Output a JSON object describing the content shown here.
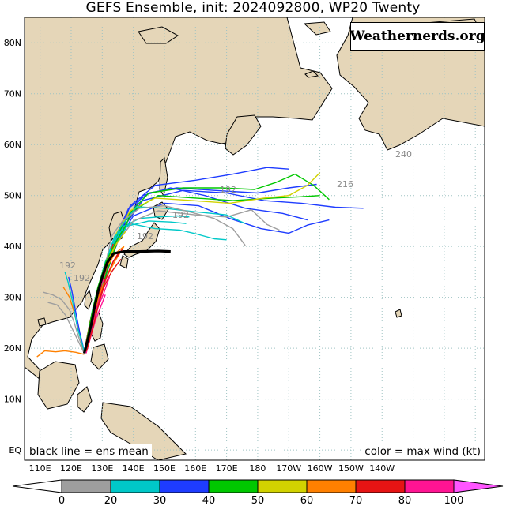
{
  "title": "GEFS Ensemble, init: 2024092800, WP20 Twenty",
  "brand": "Weathernerds.org",
  "footer": {
    "left": "black line = ens mean",
    "right": "color = max wind (kt)"
  },
  "colors": {
    "land": "#e5d6b8",
    "ocean": "#ffffff",
    "grid": "#9fc3c3",
    "ens_mean": "#000000"
  },
  "map": {
    "lon_range": [
      105,
      253
    ],
    "lat_range": [
      -2,
      85
    ],
    "lat_labels": [
      "EQ",
      "10N",
      "20N",
      "30N",
      "40N",
      "50N",
      "60N",
      "70N",
      "80N"
    ],
    "lon_labels": [
      "110E",
      "120E",
      "130E",
      "140E",
      "150E",
      "160E",
      "170E",
      "180",
      "170W",
      "160W",
      "150W",
      "140W"
    ],
    "track_hour_labels": [
      "192",
      "192",
      "192",
      "240",
      "216",
      "192",
      "192"
    ],
    "ens_mean_track": [
      [
        124.2,
        19.0
      ],
      [
        125.5,
        22.0
      ],
      [
        126.6,
        25.0
      ],
      [
        127.5,
        28.0
      ],
      [
        128.6,
        31.0
      ],
      [
        130.0,
        34.0
      ],
      [
        131.6,
        36.8
      ],
      [
        133.6,
        38.6
      ],
      [
        137.0,
        39.0
      ],
      [
        142.0,
        39.0
      ],
      [
        148.0,
        39.1
      ],
      [
        152.0,
        39.0
      ]
    ],
    "members": [
      {
        "color": "#1e3cff",
        "path": [
          [
            125.0,
            19.5
          ],
          [
            127.5,
            25
          ],
          [
            129.5,
            31
          ],
          [
            132,
            36
          ],
          [
            134.5,
            42
          ],
          [
            138.5,
            47.5
          ],
          [
            145,
            50.5
          ],
          [
            154,
            51.5
          ],
          [
            166,
            51.0
          ],
          [
            180,
            50.5
          ],
          [
            190,
            51.5
          ],
          [
            199,
            52.2
          ]
        ]
      },
      {
        "color": "#1e3cff",
        "path": [
          [
            124.5,
            19.8
          ],
          [
            127,
            26
          ],
          [
            130,
            33
          ],
          [
            133.5,
            39
          ],
          [
            137.5,
            45
          ],
          [
            143,
            50
          ],
          [
            152,
            51.5
          ],
          [
            163,
            50.0
          ],
          [
            176,
            47.5
          ],
          [
            188,
            46.5
          ],
          [
            196,
            45.2
          ]
        ]
      },
      {
        "color": "#1e3cff",
        "path": [
          [
            125.2,
            20.0
          ],
          [
            128,
            27
          ],
          [
            131,
            34
          ],
          [
            134.5,
            41
          ],
          [
            139,
            48
          ],
          [
            147,
            52
          ],
          [
            160,
            53
          ],
          [
            172,
            54.2
          ],
          [
            183,
            55.5
          ],
          [
            190,
            55.2
          ]
        ]
      },
      {
        "color": "#1e3cff",
        "path": [
          [
            125,
            19.5
          ],
          [
            128,
            27
          ],
          [
            131,
            34
          ],
          [
            135,
            41
          ],
          [
            140,
            46
          ],
          [
            150,
            48.5
          ],
          [
            161,
            48
          ],
          [
            171,
            45.5
          ],
          [
            181,
            43.5
          ],
          [
            190,
            42.6
          ],
          [
            196,
            44.2
          ],
          [
            203,
            45.2
          ]
        ]
      },
      {
        "color": "#1e3cff",
        "path": [
          [
            124.8,
            20.5
          ],
          [
            127.5,
            28
          ],
          [
            131,
            36
          ],
          [
            136,
            43
          ],
          [
            143,
            49
          ],
          [
            156,
            51
          ],
          [
            170,
            50.5
          ],
          [
            182,
            49
          ],
          [
            194,
            48.5
          ],
          [
            205,
            47.7
          ],
          [
            214,
            47.5
          ]
        ]
      },
      {
        "color": "#00c800",
        "path": [
          [
            124.5,
            19.5
          ],
          [
            127.5,
            27
          ],
          [
            131,
            34
          ],
          [
            134,
            41
          ],
          [
            138,
            46
          ],
          [
            145,
            50.5
          ],
          [
            156,
            51.5
          ],
          [
            168,
            51.5
          ],
          [
            179,
            51.2
          ],
          [
            186,
            52.6
          ],
          [
            192,
            54.2
          ],
          [
            198,
            52.0
          ],
          [
            203,
            49.2
          ]
        ]
      },
      {
        "color": "#00c800",
        "path": [
          [
            125.0,
            19.8
          ],
          [
            128,
            27
          ],
          [
            131.5,
            35
          ],
          [
            135.5,
            42
          ],
          [
            140,
            47
          ],
          [
            148,
            50
          ],
          [
            160,
            49.5
          ],
          [
            172,
            49.0
          ],
          [
            185,
            49.5
          ],
          [
            195,
            49.8
          ],
          [
            200,
            50.0
          ]
        ]
      },
      {
        "color": "#d2d200",
        "path": [
          [
            125.0,
            20.0
          ],
          [
            128,
            28
          ],
          [
            131,
            35
          ],
          [
            134,
            42
          ],
          [
            139,
            47
          ],
          [
            147,
            49.5
          ],
          [
            159,
            49.0
          ],
          [
            171,
            48.5
          ],
          [
            182,
            49.5
          ],
          [
            190,
            50.0
          ],
          [
            196,
            52.0
          ],
          [
            200,
            54.5
          ]
        ]
      },
      {
        "color": "#00c8c8",
        "path": [
          [
            124.3,
            19.8
          ],
          [
            127,
            27
          ],
          [
            130,
            34
          ],
          [
            133,
            40
          ],
          [
            137,
            44
          ],
          [
            142,
            45.5
          ],
          [
            148,
            45.8
          ],
          [
            154,
            46.0
          ],
          [
            158,
            45.8
          ]
        ]
      },
      {
        "color": "#00c8c8",
        "path": [
          [
            124.6,
            20.0
          ],
          [
            127.5,
            27
          ],
          [
            130.5,
            34
          ],
          [
            133.5,
            40
          ],
          [
            138,
            44
          ],
          [
            145,
            45
          ],
          [
            152,
            44.8
          ],
          [
            157,
            44.5
          ]
        ]
      },
      {
        "color": "#00c8c8",
        "path": [
          [
            124.5,
            20.2
          ],
          [
            127,
            28
          ],
          [
            130.5,
            36
          ],
          [
            134,
            42
          ],
          [
            139,
            44.5
          ],
          [
            147,
            43.5
          ],
          [
            155,
            43.2
          ],
          [
            160,
            42.5
          ],
          [
            166,
            41.5
          ],
          [
            170,
            41.3
          ]
        ]
      },
      {
        "color": "#00c8c8",
        "path": [
          [
            124.7,
            20.4
          ],
          [
            127.5,
            29
          ],
          [
            131,
            37
          ],
          [
            135.5,
            43.5
          ],
          [
            141,
            47.8
          ],
          [
            150,
            47.5
          ],
          [
            160,
            46.8
          ],
          [
            170,
            46.2
          ],
          [
            176,
            44.5
          ]
        ]
      },
      {
        "color": "#9e9e9e",
        "path": [
          [
            125.3,
            20.8
          ],
          [
            128,
            28
          ],
          [
            131,
            35
          ],
          [
            134,
            40
          ],
          [
            140,
            45
          ],
          [
            148,
            47
          ],
          [
            160,
            46.2
          ],
          [
            170,
            45.8
          ],
          [
            178,
            47.2
          ],
          [
            183,
            44.3
          ],
          [
            187,
            43.2
          ]
        ]
      },
      {
        "color": "#9e9e9e",
        "path": [
          [
            125.0,
            20.0
          ],
          [
            128,
            28
          ],
          [
            130.5,
            35
          ],
          [
            133,
            42
          ],
          [
            136.5,
            45
          ],
          [
            142,
            47.5
          ],
          [
            150,
            48
          ],
          [
            158,
            46.8
          ],
          [
            166,
            45.5
          ],
          [
            172,
            43.5
          ],
          [
            176,
            40.2
          ]
        ]
      },
      {
        "color": "#9e9e9e",
        "path": [
          [
            124.0,
            19.5
          ],
          [
            122.5,
            22
          ],
          [
            121,
            25
          ],
          [
            119.5,
            27.5
          ],
          [
            117,
            29.5
          ],
          [
            114,
            30.5
          ],
          [
            111,
            31.0
          ]
        ]
      },
      {
        "color": "#9e9e9e",
        "path": [
          [
            124.2,
            19.0
          ],
          [
            122.2,
            21.5
          ],
          [
            120.2,
            24
          ],
          [
            118.2,
            26.5
          ],
          [
            115.5,
            28.5
          ],
          [
            112.5,
            29.0
          ]
        ]
      },
      {
        "color": "#ff8000",
        "path": [
          [
            124.2,
            18.8
          ],
          [
            121.5,
            19.2
          ],
          [
            118,
            19.5
          ],
          [
            115,
            19.3
          ],
          [
            111.5,
            19.5
          ],
          [
            109,
            18.3
          ]
        ]
      },
      {
        "color": "#ff8000",
        "path": [
          [
            124.5,
            19.8
          ],
          [
            126.5,
            25
          ],
          [
            128.5,
            30
          ],
          [
            130.5,
            34
          ],
          [
            132.5,
            38
          ],
          [
            135,
            41
          ]
        ]
      },
      {
        "color": "#ff8000",
        "path": [
          [
            124.3,
            19.2
          ],
          [
            122.5,
            23
          ],
          [
            121,
            27
          ],
          [
            119.5,
            30
          ],
          [
            117.5,
            32
          ]
        ]
      },
      {
        "color": "#e61414",
        "path": [
          [
            124.6,
            19.5
          ],
          [
            126.5,
            24
          ],
          [
            128.5,
            29
          ],
          [
            130,
            33
          ],
          [
            132,
            37
          ],
          [
            133.5,
            40.5
          ]
        ]
      },
      {
        "color": "#e61414",
        "path": [
          [
            124.8,
            20.0
          ],
          [
            127,
            25
          ],
          [
            129,
            30
          ],
          [
            131.5,
            34
          ],
          [
            133.5,
            37
          ],
          [
            135.5,
            39
          ]
        ]
      },
      {
        "color": "#e61414",
        "path": [
          [
            125.0,
            19.5
          ],
          [
            127,
            24
          ],
          [
            128.5,
            28
          ],
          [
            130.5,
            32
          ],
          [
            133,
            35
          ],
          [
            136,
            37.5
          ]
        ]
      },
      {
        "color": "#ff1493",
        "path": [
          [
            124.6,
            19.4
          ],
          [
            126.5,
            23
          ],
          [
            128,
            27
          ],
          [
            129.5,
            31
          ],
          [
            131.5,
            34
          ],
          [
            133.5,
            37
          ]
        ]
      },
      {
        "color": "#ff1493",
        "path": [
          [
            124.9,
            19.6
          ],
          [
            126.8,
            24
          ],
          [
            128.6,
            28
          ],
          [
            130.6,
            31
          ],
          [
            132.3,
            34
          ]
        ]
      },
      {
        "color": "#ff1493",
        "path": [
          [
            124.4,
            20.0
          ],
          [
            125.8,
            24
          ],
          [
            127.2,
            28
          ],
          [
            128.8,
            31.5
          ],
          [
            130.5,
            33.5
          ]
        ]
      },
      {
        "color": "#ff1493",
        "path": [
          [
            124.8,
            19.0
          ],
          [
            126.2,
            22
          ],
          [
            127.8,
            25.5
          ],
          [
            129.4,
            28
          ],
          [
            131,
            30.5
          ]
        ]
      },
      {
        "color": "#e61414",
        "path": [
          [
            124.5,
            20.2
          ],
          [
            126,
            25
          ],
          [
            127.5,
            29
          ],
          [
            129.3,
            32.5
          ],
          [
            131,
            35.5
          ],
          [
            133,
            38
          ]
        ]
      },
      {
        "color": "#ff8000",
        "path": [
          [
            124.8,
            20.5
          ],
          [
            126.8,
            25.5
          ],
          [
            128.8,
            30
          ],
          [
            131,
            33.5
          ],
          [
            134,
            37
          ],
          [
            137,
            40
          ]
        ]
      },
      {
        "color": "#d2d200",
        "path": [
          [
            124.6,
            20.0
          ],
          [
            126.5,
            26
          ],
          [
            128.5,
            31
          ],
          [
            131,
            36
          ],
          [
            134,
            40
          ],
          [
            137.5,
            43
          ]
        ]
      },
      {
        "color": "#00c800",
        "path": [
          [
            124.5,
            20.0
          ],
          [
            126.4,
            26
          ],
          [
            128.6,
            32
          ],
          [
            131.2,
            37
          ],
          [
            134.5,
            41
          ],
          [
            138,
            44.5
          ]
        ]
      },
      {
        "color": "#1e3cff",
        "path": [
          [
            124.3,
            19.2
          ],
          [
            122.8,
            23
          ],
          [
            121.5,
            27
          ],
          [
            120.3,
            31
          ],
          [
            119.2,
            34
          ]
        ]
      },
      {
        "color": "#00c8c8",
        "path": [
          [
            124.2,
            19.5
          ],
          [
            122,
            24
          ],
          [
            120.5,
            29
          ],
          [
            119,
            33
          ],
          [
            118,
            35
          ]
        ]
      },
      {
        "color": "#ff8000",
        "path": [
          [
            124.7,
            19.6
          ],
          [
            126.5,
            25
          ],
          [
            128,
            29
          ],
          [
            129.6,
            33
          ],
          [
            131.5,
            36
          ],
          [
            134,
            38.5
          ],
          [
            137,
            40
          ]
        ]
      },
      {
        "color": "#e61414",
        "path": [
          [
            124.9,
            19.4
          ],
          [
            127,
            24
          ],
          [
            129,
            29
          ],
          [
            131,
            33.5
          ],
          [
            133.5,
            37
          ],
          [
            136.5,
            39.5
          ]
        ]
      }
    ]
  },
  "colorbar": {
    "ticks": [
      "0",
      "20",
      "30",
      "40",
      "50",
      "60",
      "70",
      "80",
      "100"
    ],
    "colors": [
      "#9e9e9e",
      "#00c8c8",
      "#1e3cff",
      "#00c800",
      "#d2d200",
      "#ff8000",
      "#e61414",
      "#ff1493"
    ],
    "under_color": "#ffffff",
    "over_color": "#ff55ff"
  }
}
